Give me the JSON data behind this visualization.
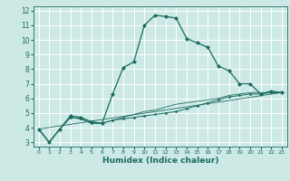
{
  "title": "",
  "xlabel": "Humidex (Indice chaleur)",
  "ylabel": "",
  "bg_color": "#cce9e5",
  "grid_color": "#ffffff",
  "line_color": "#1a6b5e",
  "xlim": [
    -0.5,
    23.5
  ],
  "ylim": [
    2.7,
    12.3
  ],
  "xticks": [
    0,
    1,
    2,
    3,
    4,
    5,
    6,
    7,
    8,
    9,
    10,
    11,
    12,
    13,
    14,
    15,
    16,
    17,
    18,
    19,
    20,
    21,
    22,
    23
  ],
  "yticks": [
    3,
    4,
    5,
    6,
    7,
    8,
    9,
    10,
    11,
    12
  ],
  "series1_x": [
    0,
    1,
    2,
    3,
    4,
    5,
    6,
    7,
    8,
    9,
    10,
    11,
    12,
    13,
    14,
    15,
    16,
    17,
    18,
    19,
    20,
    21,
    22,
    23
  ],
  "series1_y": [
    3.9,
    3.0,
    3.9,
    4.8,
    4.7,
    4.4,
    4.3,
    6.3,
    8.1,
    8.5,
    11.0,
    11.7,
    11.6,
    11.5,
    10.1,
    9.8,
    9.5,
    8.2,
    7.9,
    7.0,
    7.0,
    6.3,
    6.5,
    6.4
  ],
  "series2_x": [
    0,
    1,
    2,
    3,
    4,
    5,
    6,
    7,
    8,
    9,
    10,
    11,
    12,
    13,
    14,
    15,
    16,
    17,
    18,
    19,
    20,
    21,
    22,
    23
  ],
  "series2_y": [
    3.9,
    3.0,
    3.9,
    4.7,
    4.6,
    4.3,
    4.3,
    4.5,
    4.6,
    4.7,
    4.8,
    4.9,
    5.0,
    5.1,
    5.3,
    5.5,
    5.7,
    5.9,
    6.1,
    6.2,
    6.3,
    6.3,
    6.4,
    6.4
  ],
  "series3_x": [
    0,
    1,
    2,
    3,
    4,
    5,
    6,
    7,
    8,
    9,
    10,
    11,
    12,
    13,
    14,
    15,
    16,
    17,
    18,
    19,
    20,
    21,
    22,
    23
  ],
  "series3_y": [
    3.9,
    3.0,
    3.9,
    4.7,
    4.6,
    4.3,
    4.3,
    4.5,
    4.7,
    4.9,
    5.1,
    5.2,
    5.4,
    5.6,
    5.7,
    5.8,
    5.9,
    6.0,
    6.2,
    6.3,
    6.4,
    6.4,
    6.4,
    6.4
  ],
  "series4_x": [
    0,
    23
  ],
  "series4_y": [
    3.9,
    6.4
  ]
}
